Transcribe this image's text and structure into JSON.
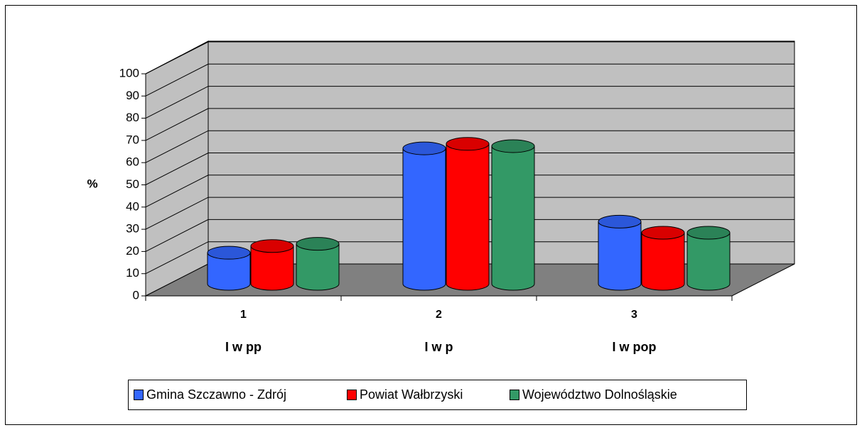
{
  "chart_data": {
    "type": "bar3d",
    "ylabel": "%",
    "categories": [
      "1",
      "2",
      "3"
    ],
    "sublabels": [
      "I w pp",
      "I w p",
      "I w pop"
    ],
    "series": [
      {
        "name": "Gmina Szczawno - Zdrój",
        "color": "#3366ff",
        "values": [
          14,
          61,
          28
        ]
      },
      {
        "name": "Powiat Wałbrzyski",
        "color": "#ff0000",
        "values": [
          17,
          63,
          23
        ]
      },
      {
        "name": "Województwo Dolnośląskie",
        "color": "#339966",
        "values": [
          18,
          62,
          23
        ]
      }
    ],
    "ylim": [
      0,
      100
    ],
    "yticks": [
      0,
      10,
      20,
      30,
      40,
      50,
      60,
      70,
      80,
      90,
      100
    ],
    "grid": true,
    "legend": "bottom"
  }
}
